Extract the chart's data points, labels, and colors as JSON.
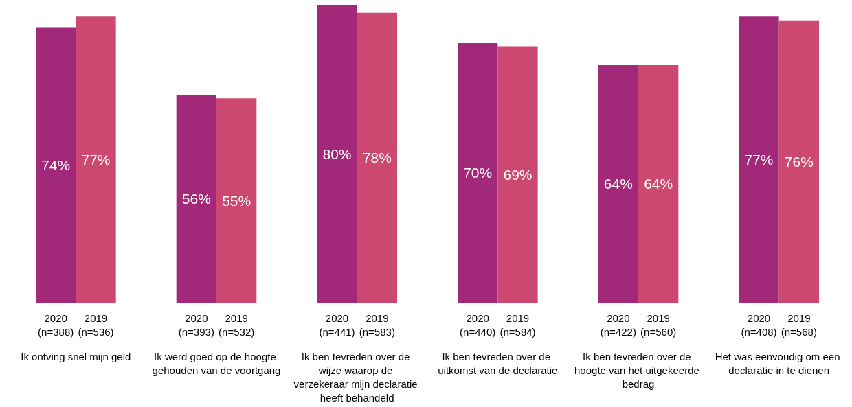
{
  "chart_data": {
    "type": "bar",
    "categories": [
      "Ik ontving snel mijn geld",
      "Ik werd goed op de hoogte gehouden van de voortgang",
      "Ik ben tevreden over de wijze waarop de verzekeraar mijn declaratie heeft behandeld",
      "Ik ben tevreden over de uitkomst van de declaratie",
      "Ik ben tevreden over de hoogte van het uitgekeerde bedrag",
      "Het was eenvoudig om een declaratie in te dienen"
    ],
    "series": [
      {
        "name": "2020",
        "color": "#a2297a",
        "values": [
          74,
          56,
          80,
          70,
          64,
          77
        ],
        "value_labels": [
          "74%",
          "56%",
          "80%",
          "70%",
          "64%",
          "77%"
        ]
      },
      {
        "name": "2019",
        "color": "#cc4870",
        "values": [
          77,
          55,
          78,
          69,
          64,
          76
        ],
        "value_labels": [
          "77%",
          "55%",
          "78%",
          "69%",
          "64%",
          "76%"
        ]
      }
    ],
    "grid": false,
    "legend": false,
    "annotations": [
      {
        "text": "(n=388)",
        "x": "Ik ontving snel mijn geld",
        "y": 0
      },
      {
        "text": "(n=536)",
        "x": "Ik ontving snel mijn geld",
        "y": 0
      },
      {
        "text": "(n=393)",
        "x": "Ik werd goed op de hoogte gehouden van de voortgang",
        "y": 0
      },
      {
        "text": "(n=532)",
        "x": "Ik werd goed op de hoogte gehouden van de voortgang",
        "y": 0
      },
      {
        "text": "(n=441)",
        "x": "Ik ben tevreden over de wijze waarop de verzekeraar mijn declaratie heeft behandeld",
        "y": 0
      },
      {
        "text": "(n=583)",
        "x": "Ik ben tevreden over de wijze waarop de verzekeraar mijn declaratie heeft behandeld",
        "y": 0
      },
      {
        "text": "(n=440)",
        "x": "Ik ben tevreden over de uitkomst van de declaratie",
        "y": 0
      },
      {
        "text": "(n=584)",
        "x": "Ik ben tevreden over de uitkomst van de declaratie",
        "y": 0
      },
      {
        "text": "(n=422)",
        "x": "Ik ben tevreden over de hoogte van het uitgekeerde bedrag",
        "y": 0
      },
      {
        "text": "(n=560)",
        "x": "Ik ben tevreden over de hoogte van het uitgekeerde bedrag",
        "y": 0
      },
      {
        "text": "(n=408)",
        "x": "Het was eenvoudig om een declaratie in te dienen",
        "y": 0
      },
      {
        "text": "(n=568)",
        "x": "Het was eenvoudig om een declaratie in te dienen",
        "y": 0
      }
    ]
  }
}
